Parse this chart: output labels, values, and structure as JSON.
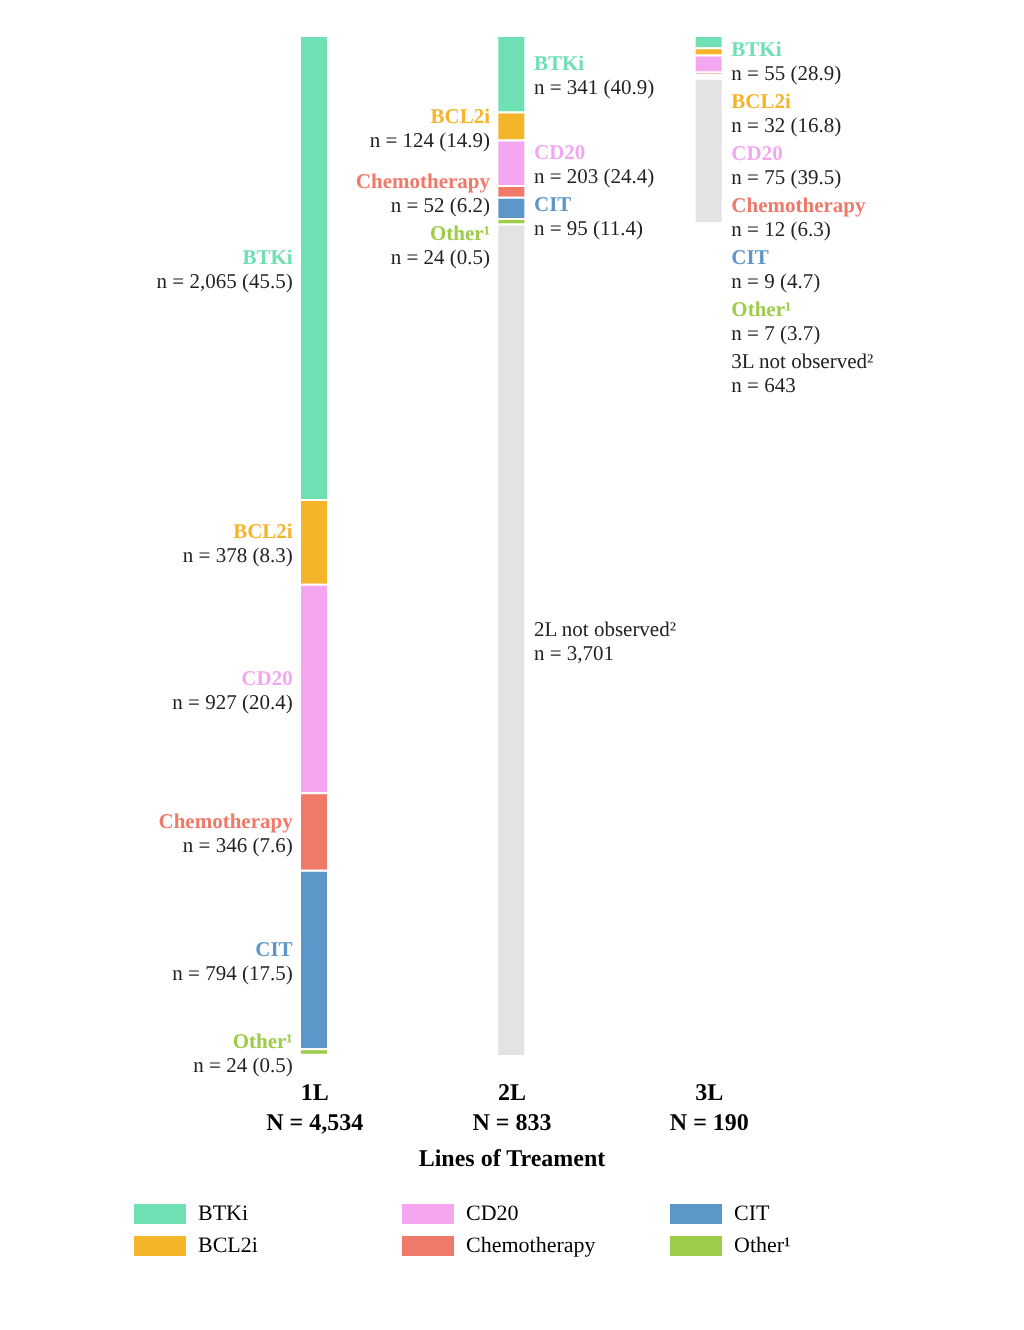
{
  "chart_data": {
    "type": "other",
    "xlabel": "Lines of Treament",
    "categories": [
      "1L",
      "2L",
      "3L"
    ],
    "legend": "bottom",
    "annotations": [
      {
        "text": "N = 4,534",
        "x": "1L"
      },
      {
        "text": "N = 833",
        "x": "2L"
      },
      {
        "text": "N = 190",
        "x": "3L"
      }
    ],
    "series": [
      {
        "name": "BTKi",
        "color": "#6ee0b4",
        "values": [
          2065,
          341,
          55
        ],
        "value_labels": [
          "n = 2,065 (45.5)",
          "n = 341 (40.9)",
          "n = 55 (28.9)"
        ]
      },
      {
        "name": "BCL2i",
        "color": "#f5b52a",
        "values": [
          378,
          124,
          32
        ],
        "value_labels": [
          "n = 378 (8.3)",
          "n = 124 (14.9)",
          "n = 32 (16.8)"
        ]
      },
      {
        "name": "CD20",
        "color": "#f5a6f0",
        "values": [
          927,
          203,
          75
        ],
        "value_labels": [
          "n = 927 (20.4)",
          "n = 203 (24.4)",
          "n = 75 (39.5)"
        ]
      },
      {
        "name": "Chemotherapy",
        "color": "#f07a6a",
        "values": [
          346,
          52,
          12
        ],
        "value_labels": [
          "n = 346 (7.6)",
          "n = 52 (6.2)",
          "n = 12 (6.3)"
        ]
      },
      {
        "name": "CIT",
        "color": "#5d97c9",
        "values": [
          794,
          95,
          9
        ],
        "value_labels": [
          "n = 794 (17.5)",
          "n = 95 (11.4)",
          "n = 9 (4.7)"
        ]
      },
      {
        "name": "Other¹",
        "color": "#9ccc48",
        "values": [
          24,
          24,
          7
        ],
        "value_labels": [
          "n = 24 (0.5)",
          "n = 24 (0.5)",
          "n = 7 (3.7)"
        ]
      },
      {
        "color": "#e3e3e3",
        "values": [
          null,
          3701,
          643
        ],
        "value_labels": [
          null,
          "2L not observed²\nn = 3,701",
          "3L not observed²\nn = 643"
        ]
      }
    ]
  }
}
